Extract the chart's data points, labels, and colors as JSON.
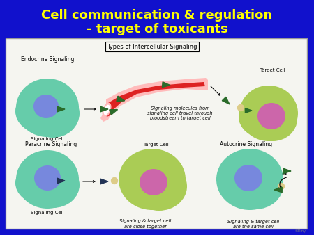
{
  "title_line1": "Cell communication & regulation",
  "title_line2": "- target of toxicants",
  "title_color": "#FFFF00",
  "title_fontsize": 13,
  "background_color": "#1111CC",
  "panel_facecolor": "#F5F5F0",
  "diagram_title": "Types of Intercellular Signaling",
  "endocrine_label": "Endocrine Signaling",
  "paracrine_label": "Paracrine Signaling",
  "autocrine_label": "Autocrine Signaling",
  "signaling_cell_label": "Signaling Cell",
  "target_cell_label": "Target Cell",
  "bloodstream_text": "Signaling molecules from\nsignaling cell travel through\nbloodstream to target cell",
  "paracrine_caption": "Signaling & target cell\nare close together",
  "autocrine_caption": "Signaling & target cell\nare the same cell",
  "cell_color_teal": "#66CCAA",
  "cell_color_green": "#AACC55",
  "nucleus_color_blue": "#7788DD",
  "nucleus_color_pink": "#CC66AA",
  "vessel_color_red": "#DD2222",
  "vessel_color_pink": "#FFBBBB",
  "receptor_color": "#DDCC88",
  "arrow_color_green": "#2A6B2A",
  "arrow_color_dark": "#223355"
}
